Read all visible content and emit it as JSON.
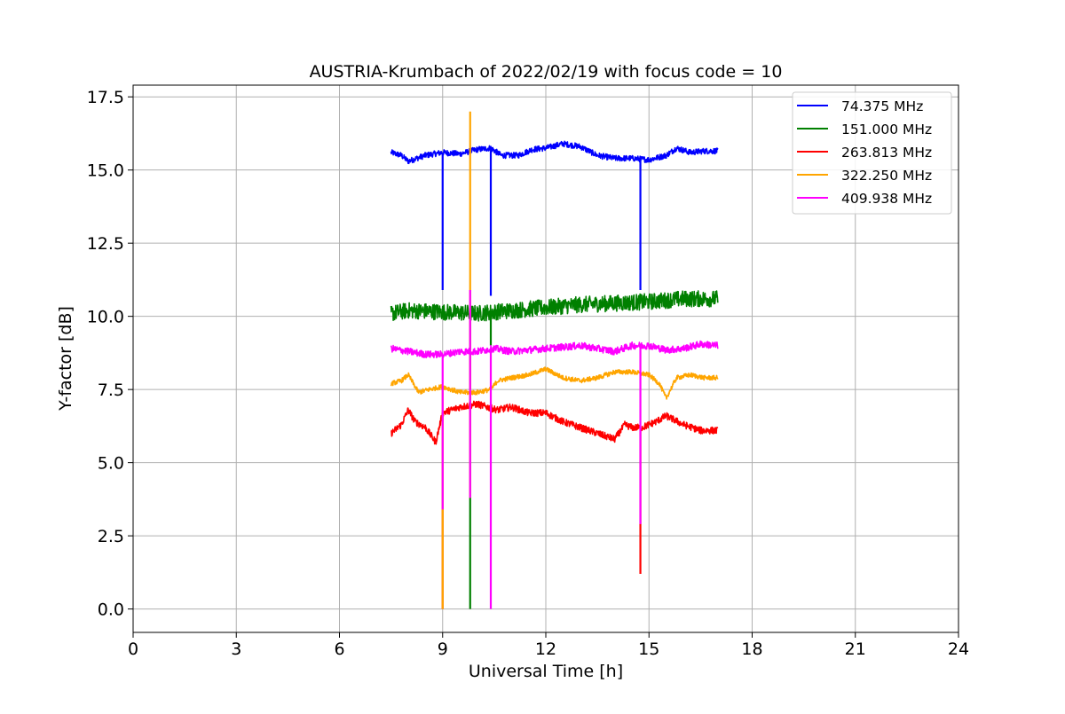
{
  "chart_data": {
    "type": "line",
    "title": "AUSTRIA-Krumbach of 2022/02/19 with focus code = 10",
    "xlabel": "Universal Time [h]",
    "ylabel": "Y-factor [dB]",
    "xlim": [
      0,
      24
    ],
    "ylim": [
      -0.8,
      17.9
    ],
    "xticks": [
      0,
      3,
      6,
      9,
      12,
      15,
      18,
      21,
      24
    ],
    "yticks": [
      0.0,
      2.5,
      5.0,
      7.5,
      10.0,
      12.5,
      15.0,
      17.5
    ],
    "xtick_labels": [
      "0",
      "3",
      "6",
      "9",
      "12",
      "15",
      "18",
      "21",
      "24"
    ],
    "ytick_labels": [
      "0.0",
      "2.5",
      "5.0",
      "7.5",
      "10.0",
      "12.5",
      "15.0",
      "17.5"
    ],
    "grid": true,
    "legend_position": "top-right",
    "series": [
      {
        "name": "  74.375 MHz",
        "color": "#0000ff",
        "noise": 0.1,
        "x": [
          7.5,
          7.8,
          8.0,
          8.5,
          9.0,
          9.5,
          10.0,
          10.4,
          10.7,
          11.2,
          11.6,
          12.0,
          12.5,
          13.0,
          13.5,
          14.0,
          14.5,
          15.0,
          15.5,
          15.8,
          16.2,
          16.6,
          17.0
        ],
        "y": [
          15.6,
          15.5,
          15.3,
          15.5,
          15.6,
          15.55,
          15.7,
          15.75,
          15.5,
          15.5,
          15.7,
          15.75,
          15.9,
          15.8,
          15.5,
          15.4,
          15.4,
          15.35,
          15.5,
          15.75,
          15.6,
          15.65,
          15.65
        ],
        "spikes": [
          {
            "x": 9.0,
            "low": 10.9
          },
          {
            "x": 10.4,
            "low": 10.7
          },
          {
            "x": 14.75,
            "low": 10.9
          }
        ]
      },
      {
        "name": "151.000 MHz",
        "color": "#008000",
        "noise": 0.28,
        "x": [
          7.5,
          8.0,
          9.0,
          10.0,
          11.0,
          12.0,
          13.0,
          14.0,
          15.0,
          16.0,
          17.0
        ],
        "y": [
          10.1,
          10.2,
          10.15,
          10.1,
          10.2,
          10.3,
          10.4,
          10.45,
          10.5,
          10.6,
          10.6
        ],
        "spikes": [
          {
            "x": 9.8,
            "low": 0.0
          },
          {
            "x": 10.4,
            "low": 9.0
          }
        ]
      },
      {
        "name": "263.813 MHz",
        "color": "#ff0000",
        "noise": 0.12,
        "x": [
          7.5,
          7.8,
          8.0,
          8.2,
          8.5,
          8.8,
          9.0,
          9.5,
          10.0,
          10.3,
          10.6,
          11.0,
          11.5,
          12.0,
          12.5,
          13.0,
          13.5,
          14.0,
          14.3,
          14.5,
          14.8,
          15.2,
          15.5,
          16.0,
          16.5,
          17.0
        ],
        "y": [
          6.0,
          6.3,
          6.8,
          6.4,
          6.2,
          5.7,
          6.7,
          6.9,
          7.0,
          6.9,
          6.8,
          6.9,
          6.7,
          6.7,
          6.4,
          6.2,
          6.0,
          5.8,
          6.3,
          6.2,
          6.2,
          6.4,
          6.6,
          6.3,
          6.1,
          6.1
        ],
        "spikes": [
          {
            "x": 9.0,
            "low": 0.0
          },
          {
            "x": 14.75,
            "low": 1.2
          }
        ]
      },
      {
        "name": "322.250 MHz",
        "color": "#ffa500",
        "noise": 0.08,
        "x": [
          7.5,
          7.8,
          8.0,
          8.3,
          8.6,
          9.0,
          9.5,
          10.0,
          10.4,
          10.6,
          11.0,
          11.5,
          12.0,
          12.5,
          13.0,
          13.5,
          14.0,
          14.5,
          15.0,
          15.3,
          15.5,
          15.8,
          16.2,
          16.6,
          17.0
        ],
        "y": [
          7.7,
          7.8,
          8.0,
          7.4,
          7.5,
          7.6,
          7.4,
          7.4,
          7.5,
          7.8,
          7.9,
          8.0,
          8.2,
          7.9,
          7.8,
          7.9,
          8.1,
          8.1,
          8.0,
          7.7,
          7.2,
          7.9,
          8.0,
          7.9,
          7.9
        ],
        "spikes": [
          {
            "x": 9.8,
            "high": 17.0,
            "low": 3.8
          },
          {
            "x": 9.0,
            "low": 0.0
          }
        ]
      },
      {
        "name": "409.938 MHz",
        "color": "#ff00ff",
        "noise": 0.12,
        "x": [
          7.5,
          8.0,
          8.5,
          9.0,
          9.5,
          10.0,
          10.5,
          11.0,
          11.5,
          12.0,
          12.5,
          13.0,
          13.5,
          14.0,
          14.5,
          15.0,
          15.5,
          16.0,
          16.5,
          17.0
        ],
        "y": [
          8.9,
          8.8,
          8.7,
          8.7,
          8.8,
          8.8,
          8.9,
          8.8,
          8.85,
          8.9,
          8.95,
          9.0,
          8.9,
          8.8,
          9.0,
          9.0,
          8.85,
          8.9,
          9.05,
          9.0
        ],
        "spikes": [
          {
            "x": 9.0,
            "low": 3.4
          },
          {
            "x": 9.8,
            "high": 10.9,
            "low": 3.8
          },
          {
            "x": 10.4,
            "low": 0.0
          },
          {
            "x": 14.75,
            "low": 2.9
          }
        ]
      }
    ]
  }
}
